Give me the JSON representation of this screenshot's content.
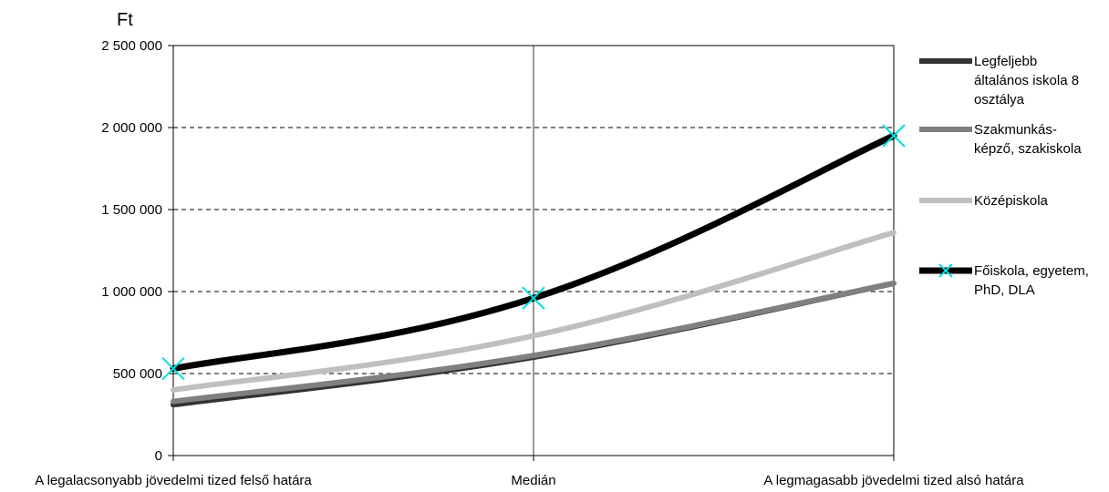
{
  "chart_data": {
    "type": "line",
    "title": "",
    "ylabel": "Ft",
    "xlabel": "",
    "categories": [
      "A legalacsonyabb jövedelmi tized felső határa",
      "Medián",
      "A legmagasabb jövedelmi tized alsó határa"
    ],
    "ylim": [
      0,
      2500000
    ],
    "yticks": [
      0,
      500000,
      1000000,
      1500000,
      2000000,
      2500000
    ],
    "ytick_labels": [
      "0",
      "500 000",
      "1 000 000",
      "1 500 000",
      "2 000 000",
      "2 500 000"
    ],
    "grid": "horizontal dashed, vertical line at median",
    "legend_position": "right",
    "series": [
      {
        "name": "Legfeljebb általános iskola 8 osztálya",
        "legend_lines": [
          "Legfeljebb",
          "általános iskola 8",
          "osztálya"
        ],
        "color": "#333333",
        "values": [
          310000,
          600000,
          1050000
        ]
      },
      {
        "name": "Szakmunkás-képző, szakiskola",
        "legend_lines": [
          "Szakmunkás-",
          "képző, szakiskola"
        ],
        "color": "#808080",
        "values": [
          330000,
          610000,
          1050000
        ]
      },
      {
        "name": "Középiskola",
        "legend_lines": [
          "Középiskola"
        ],
        "color": "#bfbfbf",
        "values": [
          400000,
          730000,
          1360000
        ]
      },
      {
        "name": "Főiskola, egyetem, PhD, DLA",
        "legend_lines": [
          "Főiskola, egyetem,",
          "PhD, DLA"
        ],
        "color": "#000000",
        "marker_color": "#00e0e0",
        "values": [
          530000,
          960000,
          1950000
        ]
      }
    ]
  }
}
